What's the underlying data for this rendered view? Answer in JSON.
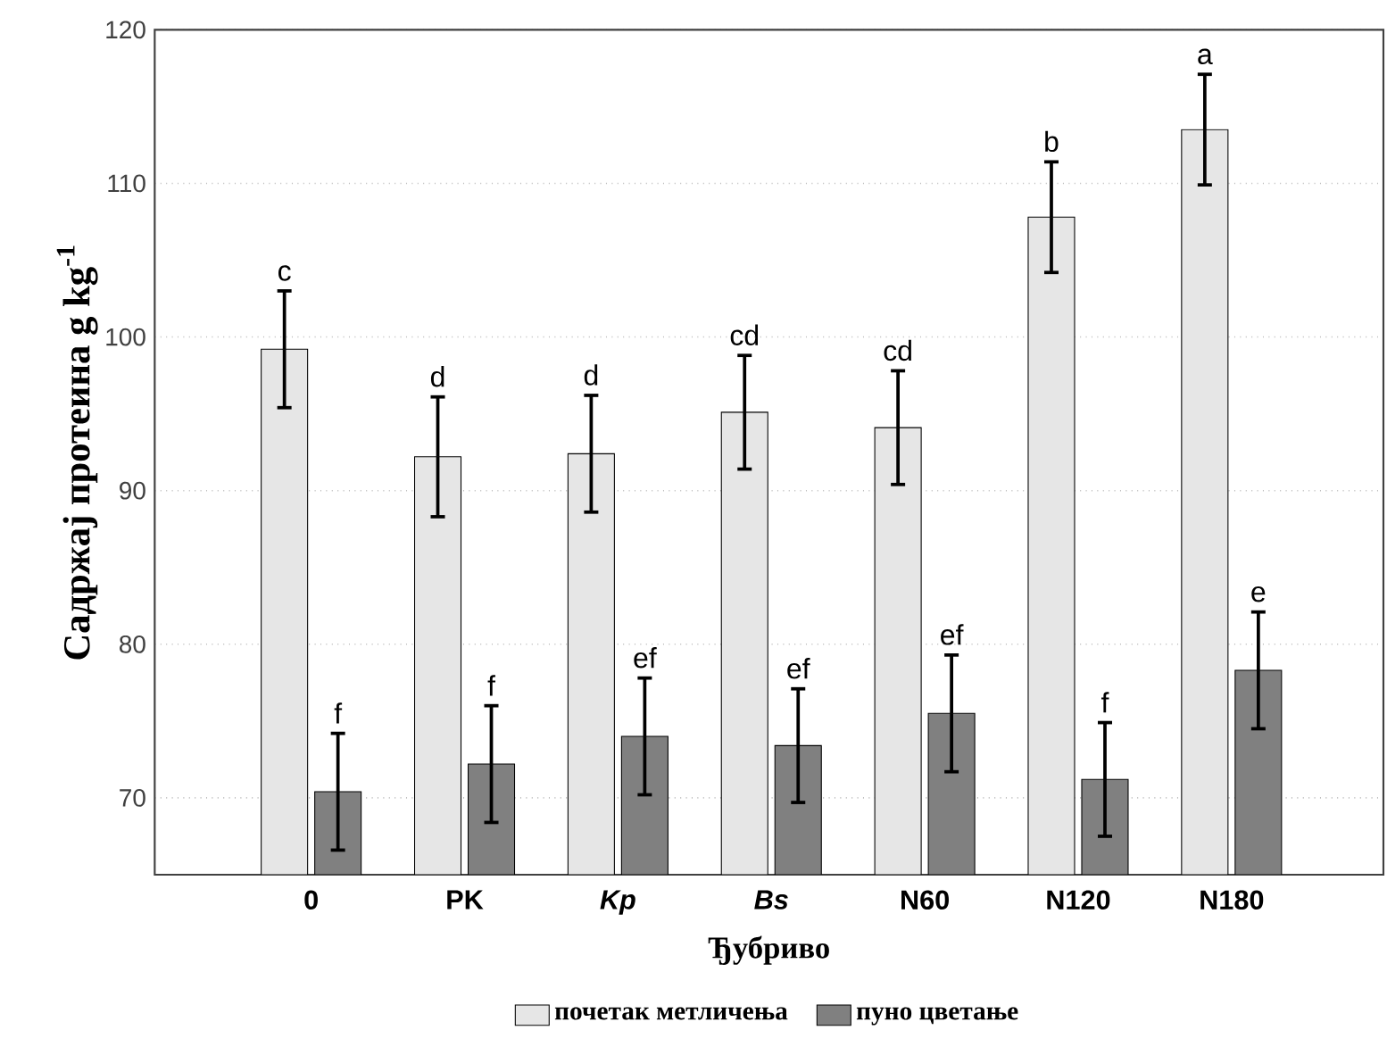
{
  "chart_data": {
    "type": "bar",
    "xlabel": "Ђубриво",
    "ylabel": "Садржај протеина g kg$^{-1}$",
    "categories": [
      "0",
      "PK",
      "*Kp*",
      "*Bs*",
      "N60",
      "N120",
      "N180"
    ],
    "series": [
      {
        "name": "почетак метличења",
        "color": "#e6e6e6",
        "values": [
          99.2,
          92.2,
          92.4,
          95.1,
          94.1,
          107.8,
          113.5
        ],
        "errors": [
          3.8,
          3.9,
          3.8,
          3.7,
          3.7,
          3.6,
          3.6
        ],
        "value_labels": [
          "c",
          "d",
          "d",
          "cd",
          "cd",
          "b",
          "a"
        ]
      },
      {
        "name": "пуно цветање",
        "color": "#808080",
        "values": [
          70.4,
          72.2,
          74.0,
          73.4,
          75.5,
          71.2,
          78.3
        ],
        "errors": [
          3.8,
          3.8,
          3.8,
          3.7,
          3.8,
          3.7,
          3.8
        ],
        "value_labels": [
          "f",
          "f",
          "ef",
          "ef",
          "ef",
          "f",
          "e"
        ]
      }
    ],
    "ylim": [
      65,
      120
    ],
    "yticks": [
      70,
      80,
      90,
      100,
      110,
      120
    ],
    "grid": "y",
    "legend": "bottom"
  }
}
